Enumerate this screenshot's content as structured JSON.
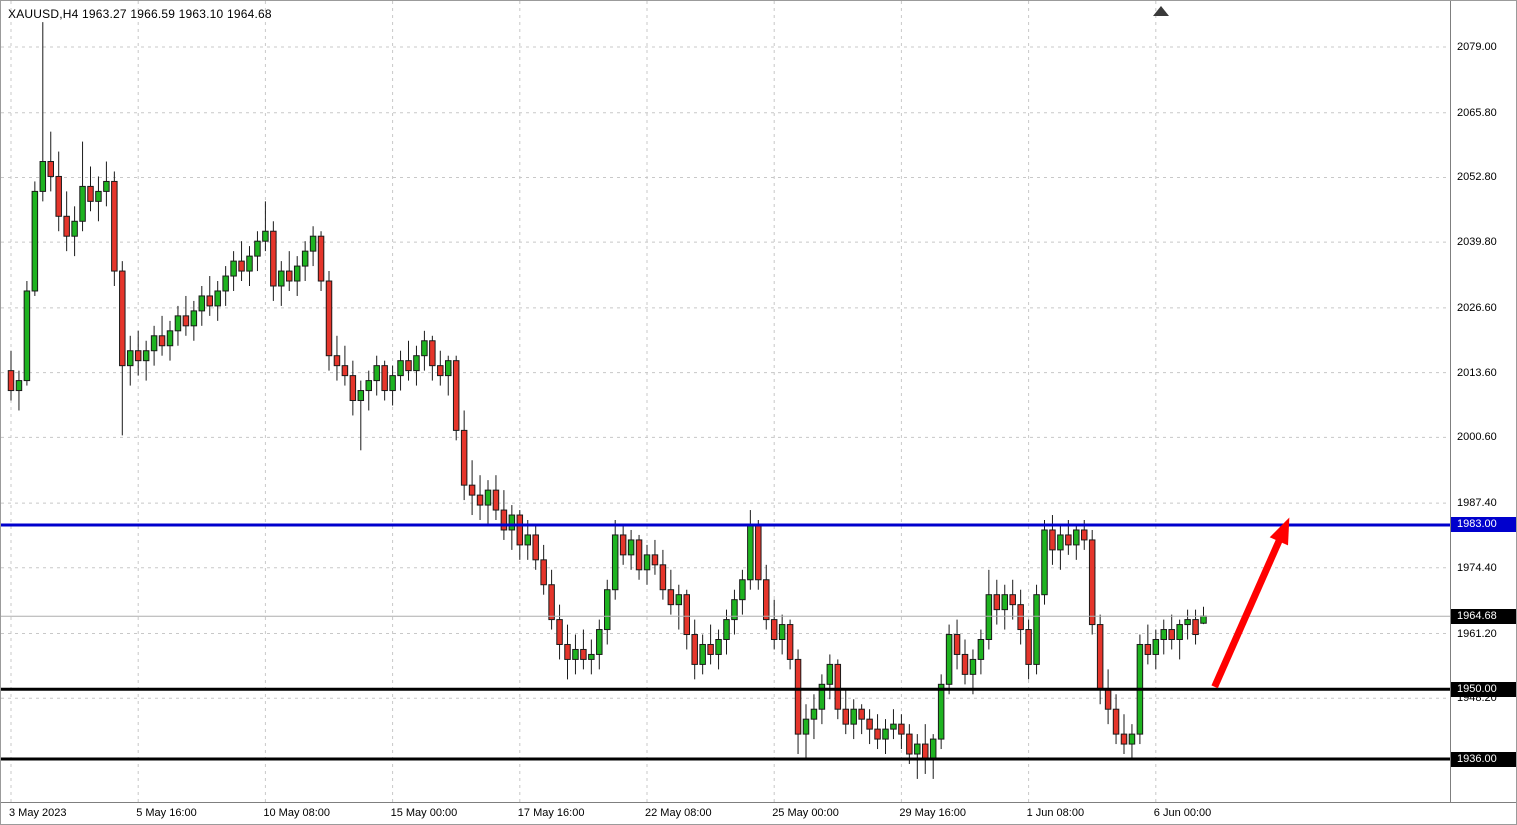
{
  "header": {
    "symbol_info": "XAUUSD,H4 1963.27 1966.59 1963.10 1964.68",
    "symbol": "XAUUSD",
    "timeframe": "H4",
    "current_bar": {
      "open": "1963.27",
      "high": "1966.59",
      "low": "1963.10",
      "close": "1964.68"
    }
  },
  "chart_data": {
    "type": "candlestick",
    "title": "XAUUSD,H4",
    "symbol": "XAUUSD",
    "timeframe": "H4",
    "ylim": [
      1927.5,
      2088.5
    ],
    "grid": true,
    "candle_format": [
      "open",
      "high",
      "low",
      "close"
    ],
    "price_ticks": [
      2079.0,
      2065.8,
      2052.8,
      2039.8,
      2026.6,
      2013.6,
      2000.6,
      1987.4,
      1974.4,
      1961.2,
      1948.2
    ],
    "time_labels": [
      {
        "text": "3 May 2023",
        "index": 0
      },
      {
        "text": "5 May 16:00",
        "index": 16
      },
      {
        "text": "10 May 08:00",
        "index": 32
      },
      {
        "text": "15 May 00:00",
        "index": 48
      },
      {
        "text": "17 May 16:00",
        "index": 64
      },
      {
        "text": "22 May 08:00",
        "index": 80
      },
      {
        "text": "25 May 00:00",
        "index": 96
      },
      {
        "text": "29 May 16:00",
        "index": 112
      },
      {
        "text": "1 Jun 08:00",
        "index": 128
      },
      {
        "text": "6 Jun 00:00",
        "index": 144
      }
    ],
    "candles": [
      [
        2014,
        2018,
        2008,
        2010
      ],
      [
        2010,
        2014,
        2006,
        2012
      ],
      [
        2012,
        2032,
        2011,
        2030
      ],
      [
        2030,
        2052,
        2029,
        2050
      ],
      [
        2050,
        2084,
        2048,
        2056
      ],
      [
        2056,
        2062,
        2050,
        2053
      ],
      [
        2053,
        2058,
        2042,
        2045
      ],
      [
        2045,
        2050,
        2038,
        2041
      ],
      [
        2041,
        2047,
        2037,
        2044
      ],
      [
        2044,
        2060,
        2042,
        2051
      ],
      [
        2051,
        2055,
        2046,
        2048
      ],
      [
        2048,
        2053,
        2044,
        2050
      ],
      [
        2050,
        2056,
        2047,
        2052
      ],
      [
        2052,
        2054,
        2031,
        2034
      ],
      [
        2034,
        2036,
        2001,
        2015
      ],
      [
        2015,
        2021,
        2011,
        2018
      ],
      [
        2018,
        2022,
        2013,
        2016
      ],
      [
        2016,
        2020,
        2012,
        2018
      ],
      [
        2018,
        2023,
        2015,
        2021
      ],
      [
        2021,
        2025,
        2017,
        2019
      ],
      [
        2019,
        2024,
        2016,
        2022
      ],
      [
        2022,
        2027,
        2019,
        2025
      ],
      [
        2025,
        2029,
        2021,
        2023
      ],
      [
        2023,
        2028,
        2020,
        2026
      ],
      [
        2026,
        2031,
        2023,
        2029
      ],
      [
        2029,
        2033,
        2025,
        2027
      ],
      [
        2027,
        2032,
        2024,
        2030
      ],
      [
        2030,
        2035,
        2027,
        2033
      ],
      [
        2033,
        2038,
        2030,
        2036
      ],
      [
        2036,
        2040,
        2032,
        2034
      ],
      [
        2034,
        2039,
        2031,
        2037
      ],
      [
        2037,
        2042,
        2034,
        2040
      ],
      [
        2040,
        2048,
        2038,
        2042
      ],
      [
        2042,
        2044,
        2028,
        2031
      ],
      [
        2031,
        2036,
        2027,
        2034
      ],
      [
        2034,
        2038,
        2030,
        2032
      ],
      [
        2032,
        2037,
        2029,
        2035
      ],
      [
        2035,
        2040,
        2032,
        2038
      ],
      [
        2038,
        2043,
        2035,
        2041
      ],
      [
        2041,
        2042,
        2030,
        2032
      ],
      [
        2032,
        2034,
        2014,
        2017
      ],
      [
        2017,
        2021,
        2012,
        2015
      ],
      [
        2015,
        2019,
        2011,
        2013
      ],
      [
        2013,
        2016,
        2005,
        2008
      ],
      [
        2008,
        2012,
        1998,
        2010
      ],
      [
        2010,
        2014,
        2006,
        2012
      ],
      [
        2012,
        2017,
        2009,
        2015
      ],
      [
        2015,
        2016,
        2008,
        2010
      ],
      [
        2010,
        2015,
        2007,
        2013
      ],
      [
        2013,
        2018,
        2010,
        2016
      ],
      [
        2016,
        2020,
        2012,
        2014
      ],
      [
        2014,
        2019,
        2011,
        2017
      ],
      [
        2017,
        2022,
        2014,
        2020
      ],
      [
        2020,
        2021,
        2012,
        2015
      ],
      [
        2015,
        2018,
        2011,
        2013
      ],
      [
        2013,
        2017,
        2009,
        2016
      ],
      [
        2016,
        2017,
        2000,
        2002
      ],
      [
        2002,
        2006,
        1988,
        1991
      ],
      [
        1991,
        1996,
        1985,
        1989
      ],
      [
        1989,
        1993,
        1984,
        1987
      ],
      [
        1987,
        1992,
        1983,
        1990
      ],
      [
        1990,
        1993,
        1984,
        1986
      ],
      [
        1986,
        1990,
        1980,
        1982
      ],
      [
        1982,
        1987,
        1978,
        1985
      ],
      [
        1985,
        1986,
        1976,
        1979
      ],
      [
        1979,
        1984,
        1976,
        1981
      ],
      [
        1981,
        1983,
        1974,
        1976
      ],
      [
        1976,
        1979,
        1969,
        1971
      ],
      [
        1971,
        1974,
        1962,
        1964
      ],
      [
        1964,
        1967,
        1956,
        1959
      ],
      [
        1959,
        1963,
        1952,
        1956
      ],
      [
        1956,
        1961,
        1953,
        1958
      ],
      [
        1958,
        1962,
        1954,
        1956
      ],
      [
        1956,
        1960,
        1953,
        1957
      ],
      [
        1957,
        1964,
        1954,
        1962
      ],
      [
        1962,
        1972,
        1959,
        1970
      ],
      [
        1970,
        1984,
        1968,
        1981
      ],
      [
        1981,
        1983,
        1975,
        1977
      ],
      [
        1977,
        1982,
        1974,
        1980
      ],
      [
        1980,
        1981,
        1972,
        1974
      ],
      [
        1974,
        1979,
        1971,
        1977
      ],
      [
        1977,
        1980,
        1973,
        1975
      ],
      [
        1975,
        1978,
        1968,
        1970
      ],
      [
        1970,
        1974,
        1965,
        1967
      ],
      [
        1967,
        1971,
        1962,
        1969
      ],
      [
        1969,
        1970,
        1958,
        1961
      ],
      [
        1961,
        1964,
        1952,
        1955
      ],
      [
        1955,
        1961,
        1953,
        1959
      ],
      [
        1959,
        1963,
        1955,
        1957
      ],
      [
        1957,
        1962,
        1954,
        1960
      ],
      [
        1960,
        1966,
        1957,
        1964
      ],
      [
        1964,
        1970,
        1961,
        1968
      ],
      [
        1968,
        1974,
        1965,
        1972
      ],
      [
        1972,
        1986,
        1970,
        1983
      ],
      [
        1983,
        1984,
        1970,
        1972
      ],
      [
        1972,
        1975,
        1962,
        1964
      ],
      [
        1964,
        1968,
        1958,
        1960
      ],
      [
        1960,
        1965,
        1957,
        1963
      ],
      [
        1963,
        1964,
        1954,
        1956
      ],
      [
        1956,
        1958,
        1937,
        1941
      ],
      [
        1941,
        1947,
        1936,
        1944
      ],
      [
        1944,
        1949,
        1940,
        1946
      ],
      [
        1946,
        1953,
        1943,
        1951
      ],
      [
        1951,
        1957,
        1948,
        1955
      ],
      [
        1955,
        1956,
        1944,
        1946
      ],
      [
        1946,
        1950,
        1941,
        1943
      ],
      [
        1943,
        1948,
        1940,
        1946
      ],
      [
        1946,
        1947,
        1941,
        1944
      ],
      [
        1944,
        1946,
        1939,
        1942
      ],
      [
        1942,
        1945,
        1938,
        1940
      ],
      [
        1940,
        1944,
        1937,
        1942
      ],
      [
        1942,
        1946,
        1940,
        1943
      ],
      [
        1943,
        1945,
        1938,
        1941
      ],
      [
        1941,
        1943,
        1935,
        1937
      ],
      [
        1937,
        1941,
        1932,
        1939
      ],
      [
        1939,
        1943,
        1933,
        1936
      ],
      [
        1936,
        1941,
        1932,
        1940
      ],
      [
        1940,
        1953,
        1938,
        1951
      ],
      [
        1951,
        1963,
        1949,
        1961
      ],
      [
        1961,
        1964,
        1954,
        1957
      ],
      [
        1957,
        1960,
        1951,
        1953
      ],
      [
        1953,
        1958,
        1949,
        1956
      ],
      [
        1956,
        1962,
        1953,
        1960
      ],
      [
        1960,
        1974,
        1958,
        1969
      ],
      [
        1969,
        1972,
        1963,
        1966
      ],
      [
        1966,
        1971,
        1962,
        1969
      ],
      [
        1969,
        1972,
        1964,
        1967
      ],
      [
        1967,
        1970,
        1959,
        1962
      ],
      [
        1962,
        1964,
        1952,
        1955
      ],
      [
        1955,
        1971,
        1953,
        1969
      ],
      [
        1969,
        1984,
        1967,
        1982
      ],
      [
        1982,
        1985,
        1975,
        1978
      ],
      [
        1978,
        1983,
        1974,
        1981
      ],
      [
        1981,
        1984,
        1977,
        1979
      ],
      [
        1979,
        1983,
        1976,
        1982
      ],
      [
        1982,
        1984,
        1978,
        1980
      ],
      [
        1980,
        1982,
        1961,
        1963
      ],
      [
        1963,
        1965,
        1947,
        1950
      ],
      [
        1950,
        1954,
        1943,
        1946
      ],
      [
        1946,
        1949,
        1939,
        1941
      ],
      [
        1941,
        1945,
        1937,
        1939
      ],
      [
        1939,
        1943,
        1936,
        1941
      ],
      [
        1941,
        1961,
        1939,
        1959
      ],
      [
        1959,
        1963,
        1955,
        1957
      ],
      [
        1957,
        1962,
        1954,
        1960
      ],
      [
        1960,
        1964,
        1957,
        1962
      ],
      [
        1962,
        1965,
        1958,
        1960
      ],
      [
        1960,
        1964,
        1956,
        1963
      ],
      [
        1963,
        1966,
        1960,
        1964
      ],
      [
        1964,
        1966,
        1959,
        1961
      ],
      [
        1963.27,
        1966.59,
        1963.1,
        1964.68
      ]
    ],
    "horizontal_lines": [
      {
        "price": 1983.0,
        "label": "1983.00",
        "color": "#0000CD",
        "width": 3,
        "name": "resistance-1983"
      },
      {
        "price": 1950.0,
        "label": "1950.00",
        "color": "#000000",
        "width": 3,
        "name": "support-1950"
      },
      {
        "price": 1936.0,
        "label": "1936.00",
        "color": "#000000",
        "width": 3,
        "name": "support-1936"
      }
    ],
    "current_price_line": {
      "price": 1964.68,
      "label": "1964.68",
      "line_color": "#ADADAD",
      "badge_color": "#000000"
    },
    "arrow_annotation": {
      "from": {
        "bar": 151.4,
        "price": 1950.5
      },
      "to": {
        "bar": 160.8,
        "price": 1984.5
      },
      "color": "#FF0000"
    },
    "colors": {
      "background": "#FFFFFF",
      "grid": "#C8C8C8",
      "candle_up": "#1EB320",
      "candle_down": "#E5352B",
      "candle_outline": "#1A1A1A",
      "axis_text": "#000000",
      "badge_text": "#FFFFFF"
    },
    "legend_position": "none"
  }
}
